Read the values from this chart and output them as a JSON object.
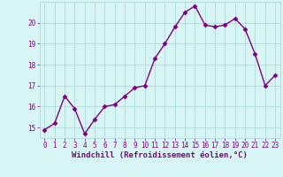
{
  "x": [
    0,
    1,
    2,
    3,
    4,
    5,
    6,
    7,
    8,
    9,
    10,
    11,
    12,
    13,
    14,
    15,
    16,
    17,
    18,
    19,
    20,
    21,
    22,
    23
  ],
  "y": [
    14.9,
    15.2,
    16.5,
    15.9,
    14.7,
    15.4,
    16.0,
    16.1,
    16.5,
    16.9,
    17.0,
    18.3,
    19.0,
    19.8,
    20.5,
    20.8,
    19.9,
    19.8,
    19.9,
    20.2,
    19.7,
    18.5,
    17.0,
    17.5
  ],
  "line_color": "#800080",
  "marker": "D",
  "markersize": 2.5,
  "linewidth": 1.0,
  "xlabel": "Windchill (Refroidissement éolien,°C)",
  "xlabel_fontsize": 6.5,
  "bg_color": "#d8f5f5",
  "grid_color": "#aad4d4",
  "tick_color": "#800080",
  "label_color": "#800080",
  "ylim": [
    14.5,
    21.0
  ],
  "yticks": [
    15,
    16,
    17,
    18,
    19,
    20
  ],
  "xticks": [
    0,
    1,
    2,
    3,
    4,
    5,
    6,
    7,
    8,
    9,
    10,
    11,
    12,
    13,
    14,
    15,
    16,
    17,
    18,
    19,
    20,
    21,
    22,
    23
  ],
  "tick_fontsize": 5.5
}
